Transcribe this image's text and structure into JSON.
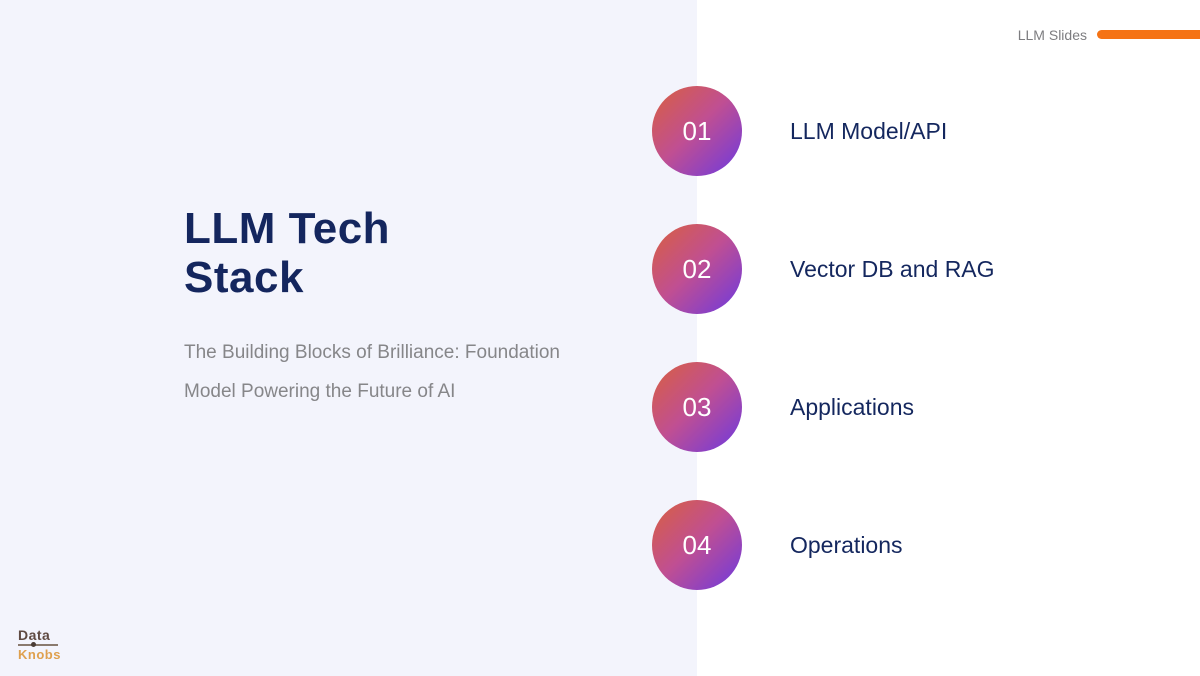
{
  "header": {
    "brand": "LLM Slides"
  },
  "slide": {
    "title": "LLM Tech Stack",
    "subtitle": "The Building Blocks of Brilliance: Foundation Model Powering the Future of AI"
  },
  "items": [
    {
      "number": "01",
      "label": "LLM Model/API"
    },
    {
      "number": "02",
      "label": "Vector DB and RAG"
    },
    {
      "number": "03",
      "label": "Applications"
    },
    {
      "number": "04",
      "label": "Operations"
    }
  ],
  "logo": {
    "line1": "Data",
    "line2": "Knobs"
  },
  "colors": {
    "accent_orange": "#f57315",
    "title_navy": "#14265e",
    "label_navy": "#14275e",
    "subtitle_gray": "#868689",
    "panel_lavender": "#f3f4fc",
    "circle_gradient_start": "#d9603e",
    "circle_gradient_mid": "#c04f92",
    "circle_gradient_end": "#6c39e0",
    "logo_data_brown": "#5f4a42",
    "logo_knobs_orange": "#dfa04e"
  }
}
